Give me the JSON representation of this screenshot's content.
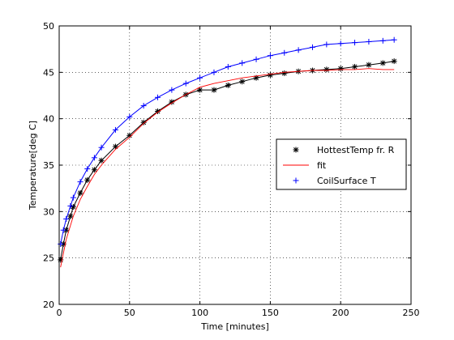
{
  "chart_data": {
    "type": "line",
    "title": "",
    "xlabel": "Time [minutes]",
    "ylabel": "Temperature[deg C]",
    "xlim": [
      0,
      250
    ],
    "ylim": [
      20,
      50
    ],
    "xticks": [
      0,
      50,
      100,
      150,
      200,
      250
    ],
    "yticks": [
      20,
      25,
      30,
      35,
      40,
      45,
      50
    ],
    "grid": true,
    "legend_position": "right",
    "series": [
      {
        "name": "HottestTemp fr. R",
        "color": "#000000",
        "marker": "asterisk",
        "x": [
          1,
          3,
          5,
          8,
          10,
          15,
          20,
          25,
          30,
          40,
          50,
          60,
          70,
          80,
          90,
          100,
          110,
          120,
          130,
          140,
          150,
          160,
          170,
          180,
          190,
          200,
          210,
          220,
          230,
          238
        ],
        "y": [
          24.8,
          26.5,
          28.0,
          29.5,
          30.5,
          32.0,
          33.4,
          34.5,
          35.5,
          37.0,
          38.2,
          39.6,
          40.8,
          41.8,
          42.6,
          43.1,
          43.1,
          43.6,
          44.0,
          44.4,
          44.7,
          44.9,
          45.1,
          45.2,
          45.3,
          45.4,
          45.6,
          45.8,
          46.0,
          46.2
        ]
      },
      {
        "name": "fit",
        "color": "#ff0000",
        "marker": "none",
        "x": [
          1,
          3,
          5,
          8,
          10,
          15,
          20,
          25,
          30,
          40,
          50,
          60,
          70,
          80,
          90,
          100,
          110,
          120,
          130,
          140,
          150,
          160,
          170,
          180,
          190,
          200,
          210,
          220,
          230,
          238
        ],
        "y": [
          24.0,
          25.5,
          27.0,
          28.5,
          29.5,
          31.3,
          32.7,
          34.0,
          35.0,
          36.7,
          38.0,
          39.5,
          40.7,
          41.7,
          42.6,
          43.4,
          43.8,
          44.1,
          44.4,
          44.6,
          44.8,
          45.0,
          45.1,
          45.2,
          45.2,
          45.3,
          45.3,
          45.4,
          45.3,
          45.3
        ]
      },
      {
        "name": "CoilSurface T",
        "color": "#0000ff",
        "marker": "plus",
        "x": [
          1,
          3,
          5,
          8,
          10,
          15,
          20,
          25,
          30,
          40,
          50,
          60,
          70,
          80,
          90,
          100,
          110,
          120,
          130,
          140,
          150,
          160,
          170,
          180,
          190,
          200,
          210,
          220,
          230,
          238
        ],
        "y": [
          26.5,
          28.0,
          29.2,
          30.6,
          31.5,
          33.2,
          34.6,
          35.8,
          36.9,
          38.8,
          40.2,
          41.4,
          42.3,
          43.1,
          43.8,
          44.4,
          45.0,
          45.6,
          46.0,
          46.4,
          46.8,
          47.1,
          47.4,
          47.7,
          48.0,
          48.1,
          48.2,
          48.3,
          48.4,
          48.5
        ]
      }
    ]
  }
}
